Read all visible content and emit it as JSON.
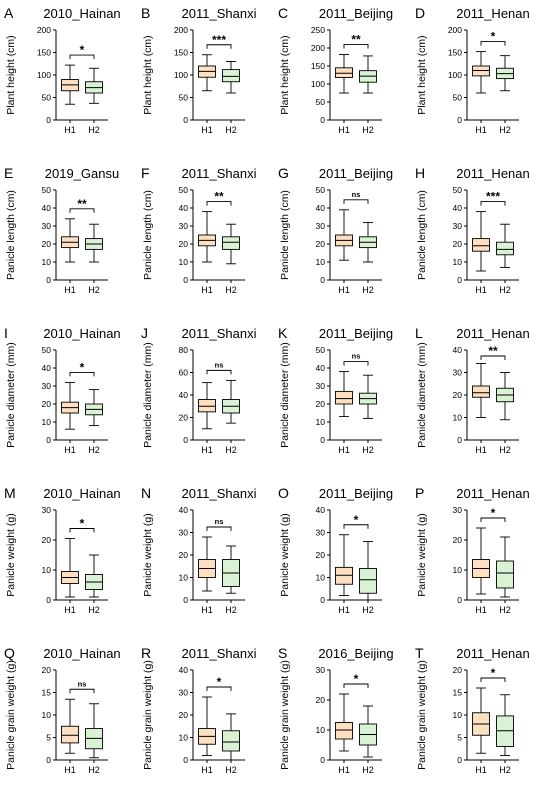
{
  "colors": {
    "H1": "#fde0c2",
    "H2": "#d9f2d4",
    "stroke": "#000000"
  },
  "chart_data": [
    {
      "letter": "A",
      "type": "box",
      "title": "2010_Hainan",
      "ylabel": "Plant height (cm)",
      "ylim": [
        0,
        200
      ],
      "yticks": [
        0,
        50,
        100,
        150,
        200
      ],
      "categories": [
        "H1",
        "H2"
      ],
      "significance": "*",
      "series": [
        {
          "name": "H1",
          "min": 35,
          "q1": 65,
          "median": 78,
          "q3": 90,
          "max": 122
        },
        {
          "name": "H2",
          "min": 37,
          "q1": 60,
          "median": 72,
          "q3": 85,
          "max": 115
        }
      ]
    },
    {
      "letter": "B",
      "type": "box",
      "title": "2011_Shanxi",
      "ylabel": "Plant height (cm)",
      "ylim": [
        0,
        200
      ],
      "yticks": [
        0,
        50,
        100,
        150,
        200
      ],
      "categories": [
        "H1",
        "H2"
      ],
      "significance": "***",
      "series": [
        {
          "name": "H1",
          "min": 65,
          "q1": 95,
          "median": 108,
          "q3": 120,
          "max": 145
        },
        {
          "name": "H2",
          "min": 60,
          "q1": 85,
          "median": 97,
          "q3": 112,
          "max": 130
        }
      ]
    },
    {
      "letter": "C",
      "type": "box",
      "title": "2011_Beijing",
      "ylabel": "Plant height (cm)",
      "ylim": [
        0,
        250
      ],
      "yticks": [
        0,
        50,
        100,
        150,
        200,
        250
      ],
      "categories": [
        "H1",
        "H2"
      ],
      "significance": "**",
      "series": [
        {
          "name": "H1",
          "min": 75,
          "q1": 118,
          "median": 130,
          "q3": 145,
          "max": 182
        },
        {
          "name": "H2",
          "min": 75,
          "q1": 105,
          "median": 122,
          "q3": 137,
          "max": 178
        }
      ]
    },
    {
      "letter": "D",
      "type": "box",
      "title": "2011_Henan",
      "ylabel": "Plant height (cm)",
      "ylim": [
        0,
        200
      ],
      "yticks": [
        0,
        50,
        100,
        150,
        200
      ],
      "categories": [
        "H1",
        "H2"
      ],
      "significance": "*",
      "series": [
        {
          "name": "H1",
          "min": 60,
          "q1": 98,
          "median": 110,
          "q3": 120,
          "max": 152
        },
        {
          "name": "H2",
          "min": 65,
          "q1": 92,
          "median": 103,
          "q3": 115,
          "max": 143
        }
      ]
    },
    {
      "letter": "E",
      "type": "box",
      "title": "2019_Gansu",
      "ylabel": "Panicle length (cm)",
      "ylim": [
        0,
        50
      ],
      "yticks": [
        0,
        10,
        20,
        30,
        40,
        50
      ],
      "categories": [
        "H1",
        "H2"
      ],
      "significance": "**",
      "series": [
        {
          "name": "H1",
          "min": 10,
          "q1": 18,
          "median": 21,
          "q3": 24,
          "max": 34
        },
        {
          "name": "H2",
          "min": 10,
          "q1": 17,
          "median": 20,
          "q3": 23,
          "max": 31
        }
      ]
    },
    {
      "letter": "F",
      "type": "box",
      "title": "2011_Shanxi",
      "ylabel": "Panicle length (cm)",
      "ylim": [
        0,
        50
      ],
      "yticks": [
        0,
        10,
        20,
        30,
        40,
        50
      ],
      "categories": [
        "H1",
        "H2"
      ],
      "significance": "**",
      "series": [
        {
          "name": "H1",
          "min": 10,
          "q1": 19,
          "median": 22,
          "q3": 25,
          "max": 38
        },
        {
          "name": "H2",
          "min": 9,
          "q1": 17,
          "median": 21,
          "q3": 24,
          "max": 31
        }
      ]
    },
    {
      "letter": "G",
      "type": "box",
      "title": "2011_Beijing",
      "ylabel": "Panicle length (cm)",
      "ylim": [
        0,
        50
      ],
      "yticks": [
        0,
        10,
        20,
        30,
        40,
        50
      ],
      "categories": [
        "H1",
        "H2"
      ],
      "significance": "ns",
      "series": [
        {
          "name": "H1",
          "min": 11,
          "q1": 19,
          "median": 22,
          "q3": 25,
          "max": 39
        },
        {
          "name": "H2",
          "min": 10,
          "q1": 18,
          "median": 21,
          "q3": 24,
          "max": 32
        }
      ]
    },
    {
      "letter": "H",
      "type": "box",
      "title": "2011_Henan",
      "ylabel": "Panicle length (cm)",
      "ylim": [
        0,
        50
      ],
      "yticks": [
        0,
        10,
        20,
        30,
        40,
        50
      ],
      "categories": [
        "H1",
        "H2"
      ],
      "significance": "***",
      "series": [
        {
          "name": "H1",
          "min": 5,
          "q1": 16,
          "median": 19,
          "q3": 23,
          "max": 38
        },
        {
          "name": "H2",
          "min": 7,
          "q1": 14,
          "median": 17,
          "q3": 21,
          "max": 31
        }
      ]
    },
    {
      "letter": "I",
      "type": "box",
      "title": "2010_Hainan",
      "ylabel": "Panicle diameter (mm)",
      "ylim": [
        0,
        50
      ],
      "yticks": [
        0,
        10,
        20,
        30,
        40,
        50
      ],
      "categories": [
        "H1",
        "H2"
      ],
      "significance": "*",
      "series": [
        {
          "name": "H1",
          "min": 6,
          "q1": 15,
          "median": 18,
          "q3": 21,
          "max": 32
        },
        {
          "name": "H2",
          "min": 8,
          "q1": 14,
          "median": 17,
          "q3": 20,
          "max": 28
        }
      ]
    },
    {
      "letter": "J",
      "type": "box",
      "title": "2011_Shanxi",
      "ylabel": "Panicle diameter (mm)",
      "ylim": [
        0,
        80
      ],
      "yticks": [
        0,
        20,
        40,
        60,
        80
      ],
      "categories": [
        "H1",
        "H2"
      ],
      "significance": "ns",
      "series": [
        {
          "name": "H1",
          "min": 10,
          "q1": 25,
          "median": 30,
          "q3": 36,
          "max": 51
        },
        {
          "name": "H2",
          "min": 15,
          "q1": 24,
          "median": 30,
          "q3": 36,
          "max": 53
        }
      ]
    },
    {
      "letter": "K",
      "type": "box",
      "title": "2011_Beijing",
      "ylabel": "Panicle diameter (mm)",
      "ylim": [
        0,
        50
      ],
      "yticks": [
        0,
        10,
        20,
        30,
        40,
        50
      ],
      "categories": [
        "H1",
        "H2"
      ],
      "significance": "ns",
      "series": [
        {
          "name": "H1",
          "min": 13,
          "q1": 20,
          "median": 23,
          "q3": 27,
          "max": 38
        },
        {
          "name": "H2",
          "min": 12,
          "q1": 20,
          "median": 23,
          "q3": 26,
          "max": 36
        }
      ]
    },
    {
      "letter": "L",
      "type": "box",
      "title": "2011_Henan",
      "ylabel": "Panicle diameter (mm)",
      "ylim": [
        0,
        40
      ],
      "yticks": [
        0,
        10,
        20,
        30,
        40
      ],
      "categories": [
        "H1",
        "H2"
      ],
      "significance": "**",
      "series": [
        {
          "name": "H1",
          "min": 10,
          "q1": 19,
          "median": 21,
          "q3": 24,
          "max": 34
        },
        {
          "name": "H2",
          "min": 9,
          "q1": 17,
          "median": 20,
          "q3": 23,
          "max": 30
        }
      ]
    },
    {
      "letter": "M",
      "type": "box",
      "title": "2010_Hainan",
      "ylabel": "Panicle weight (g)",
      "ylim": [
        0,
        30
      ],
      "yticks": [
        0,
        10,
        20,
        30
      ],
      "categories": [
        "H1",
        "H2"
      ],
      "significance": "*",
      "series": [
        {
          "name": "H1",
          "min": 1,
          "q1": 5.5,
          "median": 7.5,
          "q3": 9.5,
          "max": 20.5
        },
        {
          "name": "H2",
          "min": 1,
          "q1": 3.5,
          "median": 6,
          "q3": 8.5,
          "max": 15
        }
      ]
    },
    {
      "letter": "N",
      "type": "box",
      "title": "2011_Shanxi",
      "ylabel": "Panicle weight (g)",
      "ylim": [
        0,
        40
      ],
      "yticks": [
        0,
        10,
        20,
        30,
        40
      ],
      "categories": [
        "H1",
        "H2"
      ],
      "significance": "ns",
      "series": [
        {
          "name": "H1",
          "min": 4,
          "q1": 10,
          "median": 14,
          "q3": 18,
          "max": 28
        },
        {
          "name": "H2",
          "min": 3,
          "q1": 6,
          "median": 12,
          "q3": 18,
          "max": 24
        }
      ]
    },
    {
      "letter": "O",
      "type": "box",
      "title": "2011_Beijing",
      "ylabel": "Panicle weight (g)",
      "ylim": [
        0,
        40
      ],
      "yticks": [
        0,
        10,
        20,
        30,
        40
      ],
      "categories": [
        "H1",
        "H2"
      ],
      "significance": "*",
      "series": [
        {
          "name": "H1",
          "min": 2,
          "q1": 7,
          "median": 11,
          "q3": 14.5,
          "max": 29
        },
        {
          "name": "H2",
          "min": 0,
          "q1": 3,
          "median": 9,
          "q3": 14,
          "max": 26
        }
      ]
    },
    {
      "letter": "P",
      "type": "box",
      "title": "2011_Henan",
      "ylabel": "Panicle weight (g)",
      "ylim": [
        0,
        30
      ],
      "yticks": [
        0,
        10,
        20,
        30
      ],
      "categories": [
        "H1",
        "H2"
      ],
      "significance": "*",
      "series": [
        {
          "name": "H1",
          "min": 2,
          "q1": 7.5,
          "median": 10.5,
          "q3": 13.5,
          "max": 24
        },
        {
          "name": "H2",
          "min": 1,
          "q1": 4,
          "median": 9,
          "q3": 13,
          "max": 21
        }
      ]
    },
    {
      "letter": "Q",
      "type": "box",
      "title": "2010_Hainan",
      "ylabel": "Panicle grain weight (g)",
      "ylim": [
        0,
        20
      ],
      "yticks": [
        0,
        5,
        10,
        15,
        20
      ],
      "categories": [
        "H1",
        "H2"
      ],
      "significance": "ns",
      "series": [
        {
          "name": "H1",
          "min": 1.5,
          "q1": 3.8,
          "median": 5.5,
          "q3": 7.5,
          "max": 13.5
        },
        {
          "name": "H2",
          "min": 0.5,
          "q1": 2.5,
          "median": 4.8,
          "q3": 7,
          "max": 12.5
        }
      ]
    },
    {
      "letter": "R",
      "type": "box",
      "title": "2011_Shanxi",
      "ylabel": "Panicle grain weight (g)",
      "ylim": [
        0,
        40
      ],
      "yticks": [
        0,
        10,
        20,
        30,
        40
      ],
      "categories": [
        "H1",
        "H2"
      ],
      "significance": "*",
      "series": [
        {
          "name": "H1",
          "min": 2,
          "q1": 7,
          "median": 10.5,
          "q3": 14,
          "max": 28
        },
        {
          "name": "H2",
          "min": 0,
          "q1": 4,
          "median": 8,
          "q3": 13,
          "max": 20.5
        }
      ]
    },
    {
      "letter": "S",
      "type": "box",
      "title": "2016_Beijing",
      "ylabel": "Panicle grain weight (g)",
      "ylim": [
        0,
        30
      ],
      "yticks": [
        0,
        10,
        20,
        30
      ],
      "categories": [
        "H1",
        "H2"
      ],
      "significance": "*",
      "series": [
        {
          "name": "H1",
          "min": 3,
          "q1": 7,
          "median": 10,
          "q3": 12.5,
          "max": 22
        },
        {
          "name": "H2",
          "min": 1,
          "q1": 5,
          "median": 8.5,
          "q3": 12,
          "max": 18
        }
      ]
    },
    {
      "letter": "T",
      "type": "box",
      "title": "2011_Henan",
      "ylabel": "Panicle grain weight (g)",
      "ylim": [
        0,
        20
      ],
      "yticks": [
        0,
        5,
        10,
        15,
        20
      ],
      "categories": [
        "H1",
        "H2"
      ],
      "significance": "*",
      "series": [
        {
          "name": "H1",
          "min": 1.5,
          "q1": 5.5,
          "median": 8,
          "q3": 10.5,
          "max": 16
        },
        {
          "name": "H2",
          "min": 1,
          "q1": 3,
          "median": 6.5,
          "q3": 9.8,
          "max": 14.5
        }
      ]
    }
  ]
}
